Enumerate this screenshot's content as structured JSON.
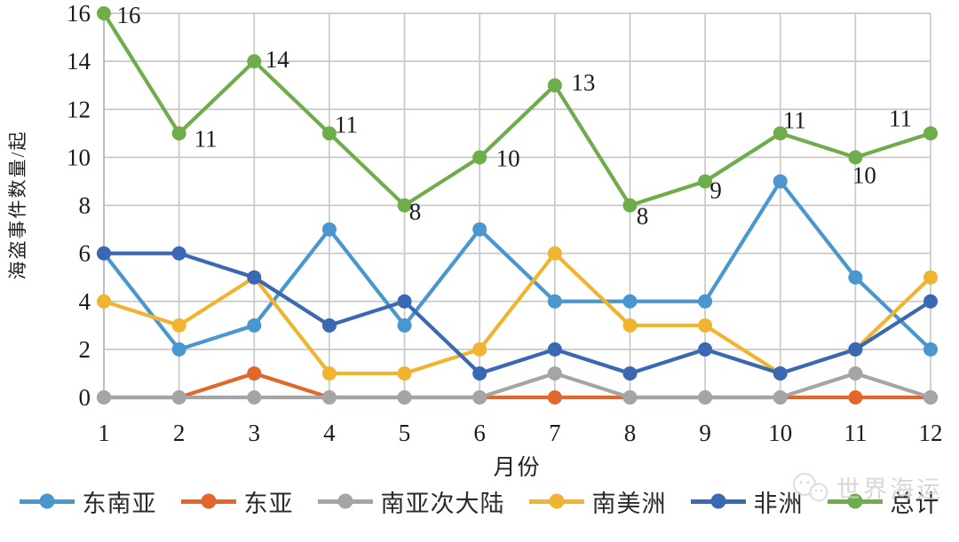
{
  "watermark": {
    "text": "世界海运",
    "icon": "wechat-icon"
  },
  "chart_data": {
    "type": "line",
    "title": "",
    "xlabel": "月份",
    "ylabel": "海盗事件数量/起",
    "x": [
      "1",
      "2",
      "3",
      "4",
      "5",
      "6",
      "7",
      "8",
      "9",
      "10",
      "11",
      "12"
    ],
    "ylim": [
      0,
      16
    ],
    "yticks": [
      0,
      2,
      4,
      6,
      8,
      10,
      12,
      14,
      16
    ],
    "grid": true,
    "legend_position": "bottom",
    "series": [
      {
        "name": "东南亚",
        "color": "#4A97CF",
        "values": [
          6,
          2,
          3,
          7,
          3,
          7,
          4,
          4,
          4,
          9,
          5,
          2
        ]
      },
      {
        "name": "东亚",
        "color": "#E3662B",
        "values": [
          0,
          0,
          1,
          0,
          0,
          0,
          0,
          0,
          0,
          0,
          0,
          0
        ]
      },
      {
        "name": "南亚次大陆",
        "color": "#A5A5A5",
        "values": [
          0,
          0,
          0,
          0,
          0,
          0,
          1,
          0,
          0,
          0,
          1,
          0
        ]
      },
      {
        "name": "南美洲",
        "color": "#F1B431",
        "values": [
          4,
          3,
          5,
          1,
          1,
          2,
          6,
          3,
          3,
          1,
          2,
          5
        ]
      },
      {
        "name": "非洲",
        "color": "#3A68B2",
        "values": [
          6,
          6,
          5,
          3,
          4,
          1,
          2,
          1,
          2,
          1,
          2,
          4
        ]
      },
      {
        "name": "总计",
        "color": "#6FAC4C",
        "values": [
          16,
          11,
          14,
          11,
          8,
          10,
          13,
          8,
          9,
          11,
          10,
          11
        ],
        "data_labels": true,
        "label_offsets": [
          [
            28,
            2
          ],
          [
            30,
            6
          ],
          [
            26,
            -2
          ],
          [
            19,
            -10
          ],
          [
            12,
            7
          ],
          [
            32,
            1
          ],
          [
            32,
            -3
          ],
          [
            14,
            12
          ],
          [
            12,
            10
          ],
          [
            16,
            -15
          ],
          [
            10,
            20
          ],
          [
            -34,
            -17
          ]
        ]
      }
    ]
  }
}
